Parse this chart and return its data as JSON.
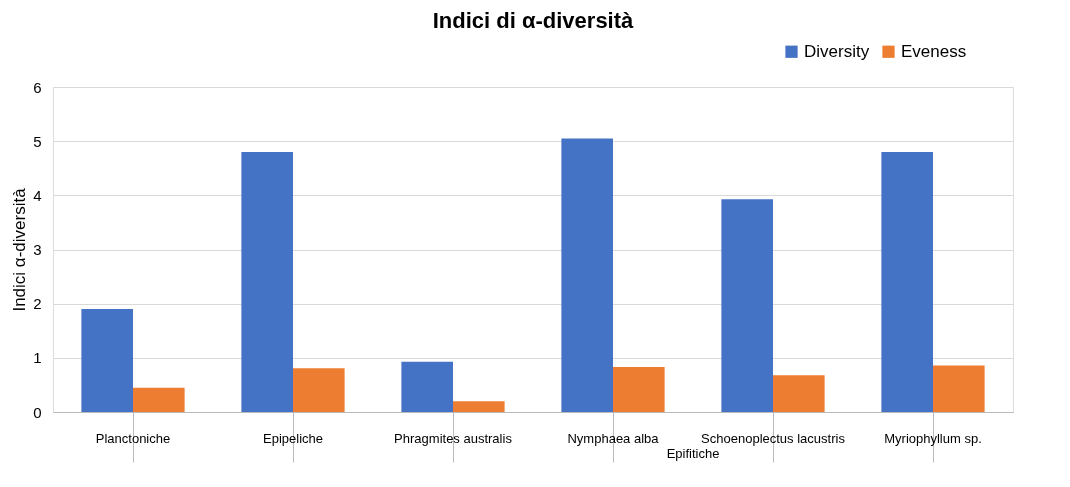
{
  "chart_data": {
    "type": "bar",
    "title": "Indici di α-diversità",
    "ylabel": "Indici α-diversità",
    "categories": [
      "Planctoniche",
      "Epipeliche",
      "Phragmites australis",
      "Nymphaea alba",
      "Schoenoplectus lacustris",
      "Myriophyllum sp."
    ],
    "series": [
      {
        "name": "Diversity",
        "color": "#4472c4",
        "values": [
          1.9,
          4.8,
          0.93,
          5.05,
          3.93,
          4.8
        ]
      },
      {
        "name": "Eveness",
        "color": "#ed7d31",
        "values": [
          0.45,
          0.81,
          0.2,
          0.83,
          0.68,
          0.86
        ]
      }
    ],
    "annotations": [
      "Epifitiche"
    ],
    "ylim": [
      0,
      6
    ],
    "yticks": [
      0,
      1,
      2,
      3,
      4,
      5,
      6
    ],
    "grid": "y",
    "legend": "top right"
  }
}
